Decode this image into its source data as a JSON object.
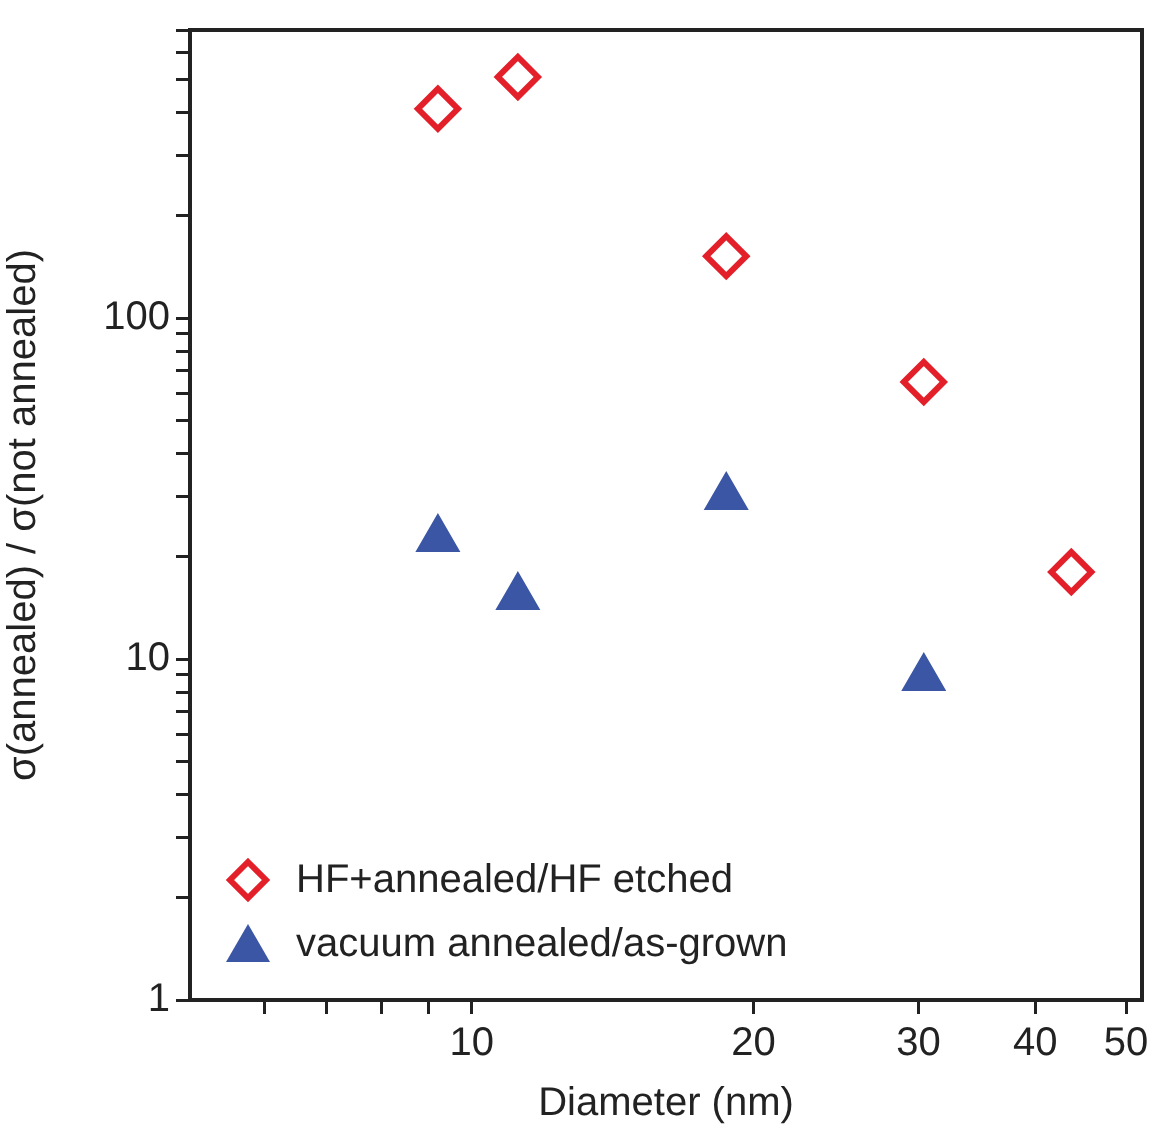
{
  "chart_data": {
    "type": "scatter",
    "xlabel": "Diameter (nm)",
    "ylabel": "σ(annealed) / σ(not annealed)",
    "log": "xy",
    "xlim": [
      5,
      52
    ],
    "ylim": [
      1,
      700
    ],
    "xticks": [
      {
        "value": 6,
        "label": null
      },
      {
        "value": 7,
        "label": null
      },
      {
        "value": 8,
        "label": null
      },
      {
        "value": 9,
        "label": null
      },
      10,
      20,
      30,
      40,
      50
    ],
    "yticks": [
      1,
      {
        "value": 2,
        "label": null
      },
      {
        "value": 3,
        "label": null
      },
      {
        "value": 4,
        "label": null
      },
      {
        "value": 5,
        "label": null
      },
      {
        "value": 6,
        "label": null
      },
      {
        "value": 7,
        "label": null
      },
      {
        "value": 8,
        "label": null
      },
      {
        "value": 9,
        "label": null
      },
      10,
      {
        "value": 20,
        "label": null
      },
      {
        "value": 30,
        "label": null
      },
      {
        "value": 40,
        "label": null
      },
      {
        "value": 50,
        "label": null
      },
      {
        "value": 60,
        "label": null
      },
      {
        "value": 70,
        "label": null
      },
      {
        "value": 80,
        "label": null
      },
      {
        "value": 90,
        "label": null
      },
      100,
      {
        "value": 200,
        "label": null
      },
      {
        "value": 300,
        "label": null
      },
      {
        "value": 400,
        "label": null
      },
      {
        "value": 500,
        "label": null
      },
      {
        "value": 600,
        "label": null
      },
      {
        "value": 700,
        "label": null
      }
    ],
    "grid": false,
    "legend": "bottom left",
    "series": [
      {
        "name": "HF+annealed/HF etched",
        "color": "#e3202a",
        "marker": "diamond",
        "x": [
          9.2,
          11.2,
          18.7,
          30.4,
          43.7
        ],
        "values": [
          411,
          510,
          152,
          65,
          18
        ]
      },
      {
        "name": "vacuum annealed/as-grown",
        "color": "#3a56a5",
        "marker": "triangle",
        "x": [
          9.2,
          11.2,
          18.7,
          30.4
        ],
        "values": [
          22.5,
          15.2,
          29.9,
          8.8
        ]
      }
    ]
  }
}
